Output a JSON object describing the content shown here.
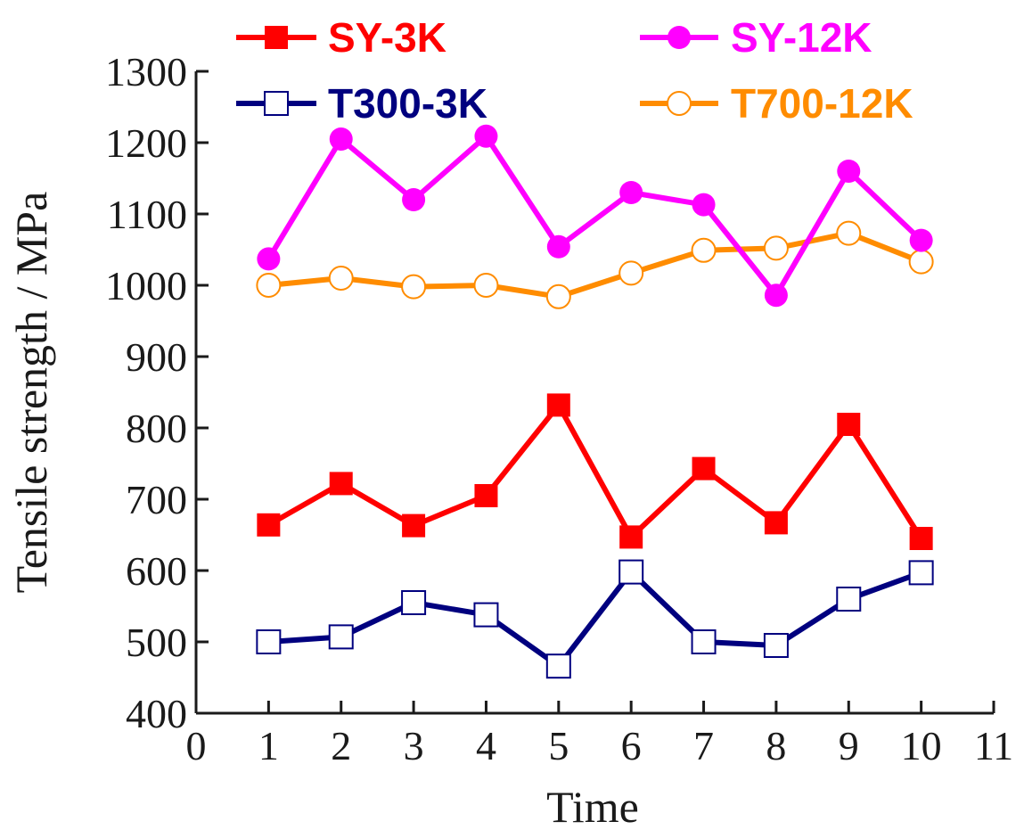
{
  "chart_data": {
    "type": "line",
    "xlabel": "Time",
    "ylabel": "Tensile strength / MPa",
    "xlim": [
      0,
      11
    ],
    "ylim": [
      400,
      1300
    ],
    "xticks": [
      0,
      1,
      2,
      3,
      4,
      5,
      6,
      7,
      8,
      9,
      10,
      11
    ],
    "yticks": [
      400,
      500,
      600,
      700,
      800,
      900,
      1000,
      1100,
      1200,
      1300
    ],
    "x": [
      1,
      2,
      3,
      4,
      5,
      6,
      7,
      8,
      9,
      10
    ],
    "legend_position": "top",
    "grid": false,
    "series": [
      {
        "name": "SY-3K",
        "color": "#ff0000",
        "marker": "square-filled",
        "values": [
          664,
          722,
          663,
          705,
          832,
          647,
          743,
          667,
          805,
          645
        ]
      },
      {
        "name": "SY-12K",
        "color": "#ff00ff",
        "marker": "circle-filled",
        "values": [
          1037,
          1205,
          1120,
          1209,
          1054,
          1130,
          1113,
          986,
          1160,
          1063
        ]
      },
      {
        "name": "T300-3K",
        "color": "#00007f",
        "marker": "square-open",
        "values": [
          500,
          507,
          555,
          538,
          466,
          598,
          500,
          495,
          560,
          597
        ]
      },
      {
        "name": "T700-12K",
        "color": "#ff8c00",
        "marker": "circle-open",
        "values": [
          1000,
          1010,
          998,
          1000,
          984,
          1017,
          1049,
          1052,
          1073,
          1033
        ]
      }
    ]
  }
}
